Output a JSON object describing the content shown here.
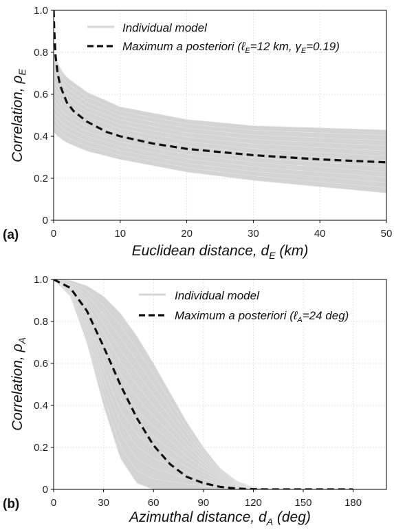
{
  "chart_data": [
    {
      "panel_label": "(a)",
      "type": "line",
      "xlabel_main": "Euclidean distance, d",
      "xlabel_sub": "E",
      "xlabel_unit": " (km)",
      "ylabel_main": "Correlation, ρ",
      "ylabel_sub": "E",
      "xlim": [
        0,
        50
      ],
      "ylim": [
        0,
        1
      ],
      "xticks": [
        "0",
        "10",
        "20",
        "30",
        "40",
        "50"
      ],
      "yticks": [
        "0",
        "0.2",
        "0.4",
        "0.6",
        "0.8",
        "1.0"
      ],
      "grid": true,
      "legend_position": "top-right",
      "legend": {
        "individual": "Individual model",
        "map": "Maximum a posteriori (ℓ",
        "map_sub1": "E",
        "map_mid": "=12 km, γ",
        "map_sub2": "E",
        "map_end": "=0.19)"
      },
      "band": {
        "x": [
          0,
          1,
          2,
          5,
          10,
          20,
          30,
          40,
          50
        ],
        "upper": [
          0.8,
          0.72,
          0.68,
          0.61,
          0.54,
          0.48,
          0.45,
          0.44,
          0.43
        ],
        "lower": [
          0.42,
          0.39,
          0.37,
          0.33,
          0.29,
          0.23,
          0.19,
          0.16,
          0.13
        ]
      },
      "series": [
        {
          "name": "Maximum a posteriori",
          "x": [
            0,
            0.1,
            0.3,
            0.6,
            1,
            2,
            3,
            5,
            8,
            10,
            15,
            20,
            25,
            30,
            35,
            40,
            45,
            50
          ],
          "values": [
            1.0,
            0.9,
            0.78,
            0.7,
            0.64,
            0.56,
            0.52,
            0.47,
            0.42,
            0.4,
            0.365,
            0.34,
            0.325,
            0.31,
            0.3,
            0.29,
            0.283,
            0.276
          ]
        }
      ]
    },
    {
      "panel_label": "(b)",
      "type": "line",
      "xlabel_main": "Azimuthal distance, d",
      "xlabel_sub": "A",
      "xlabel_unit": " (deg)",
      "ylabel_main": "Correlation, ρ",
      "ylabel_sub": "A",
      "xlim": [
        0,
        200
      ],
      "ylim": [
        0,
        1
      ],
      "xticks": [
        "0",
        "30",
        "60",
        "90",
        "120",
        "150",
        "180"
      ],
      "yticks": [
        "0",
        "0.2",
        "0.4",
        "0.6",
        "0.8",
        "1.0"
      ],
      "grid": true,
      "legend_position": "top-right",
      "legend": {
        "individual": "Individual model",
        "map": "Maximum a posteriori (ℓ",
        "map_sub1": "A",
        "map_end": "=24 deg)"
      },
      "band": {
        "x": [
          0,
          10,
          20,
          30,
          40,
          50,
          60,
          70,
          80,
          90,
          100,
          110,
          120,
          130
        ],
        "upper": [
          1.0,
          0.995,
          0.97,
          0.92,
          0.84,
          0.73,
          0.6,
          0.46,
          0.32,
          0.2,
          0.1,
          0.04,
          0.01,
          0.0
        ],
        "lower": [
          1.0,
          0.92,
          0.7,
          0.4,
          0.15,
          0.03,
          0.0,
          0.0,
          0.0,
          0.0,
          0.0,
          0.0,
          0.0,
          0.0
        ]
      },
      "series": [
        {
          "name": "Maximum a posteriori",
          "x": [
            0,
            10,
            20,
            30,
            40,
            50,
            60,
            70,
            80,
            90,
            100,
            110,
            120,
            130,
            150,
            180
          ],
          "values": [
            1.0,
            0.96,
            0.85,
            0.68,
            0.5,
            0.34,
            0.21,
            0.12,
            0.06,
            0.03,
            0.012,
            0.004,
            0.001,
            0.0,
            0.0,
            0.0
          ]
        }
      ]
    }
  ]
}
